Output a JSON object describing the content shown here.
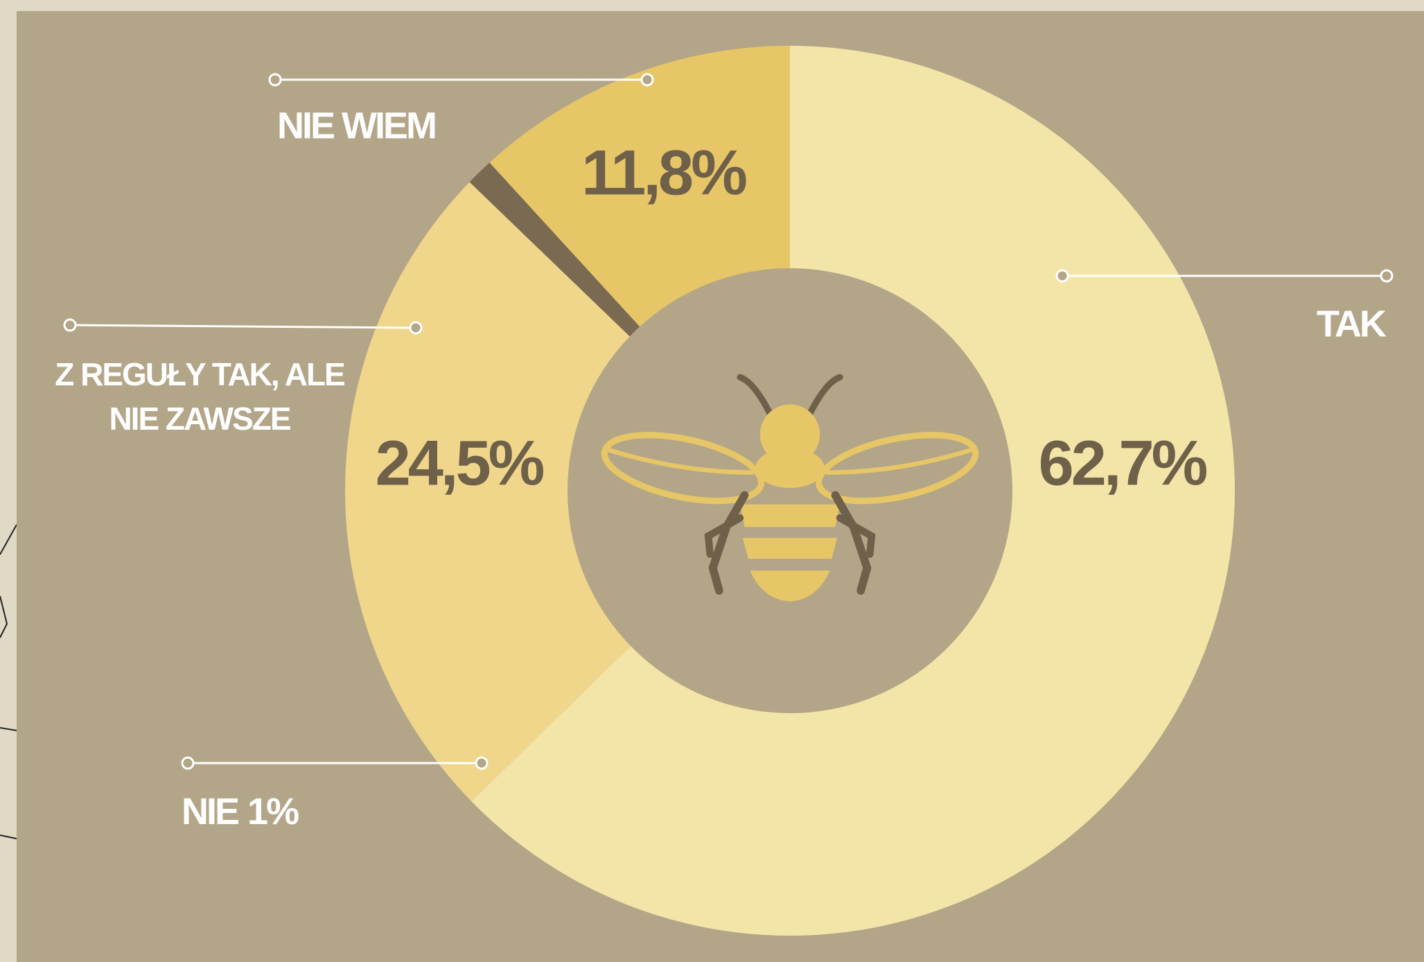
{
  "chart_data": {
    "type": "donut",
    "categories": [
      "TAK",
      "Z REGUŁY TAK, ALE NIE ZAWSZE",
      "NIE",
      "NIE WIEM"
    ],
    "values": [
      62.7,
      24.5,
      1,
      11.8
    ],
    "value_labels": [
      "62,7%",
      "24,5%",
      "1%",
      "11,8%"
    ],
    "colors": [
      "#f3e5a7",
      "#efd68b",
      "#7a6a52",
      "#e6c666"
    ]
  }
}
